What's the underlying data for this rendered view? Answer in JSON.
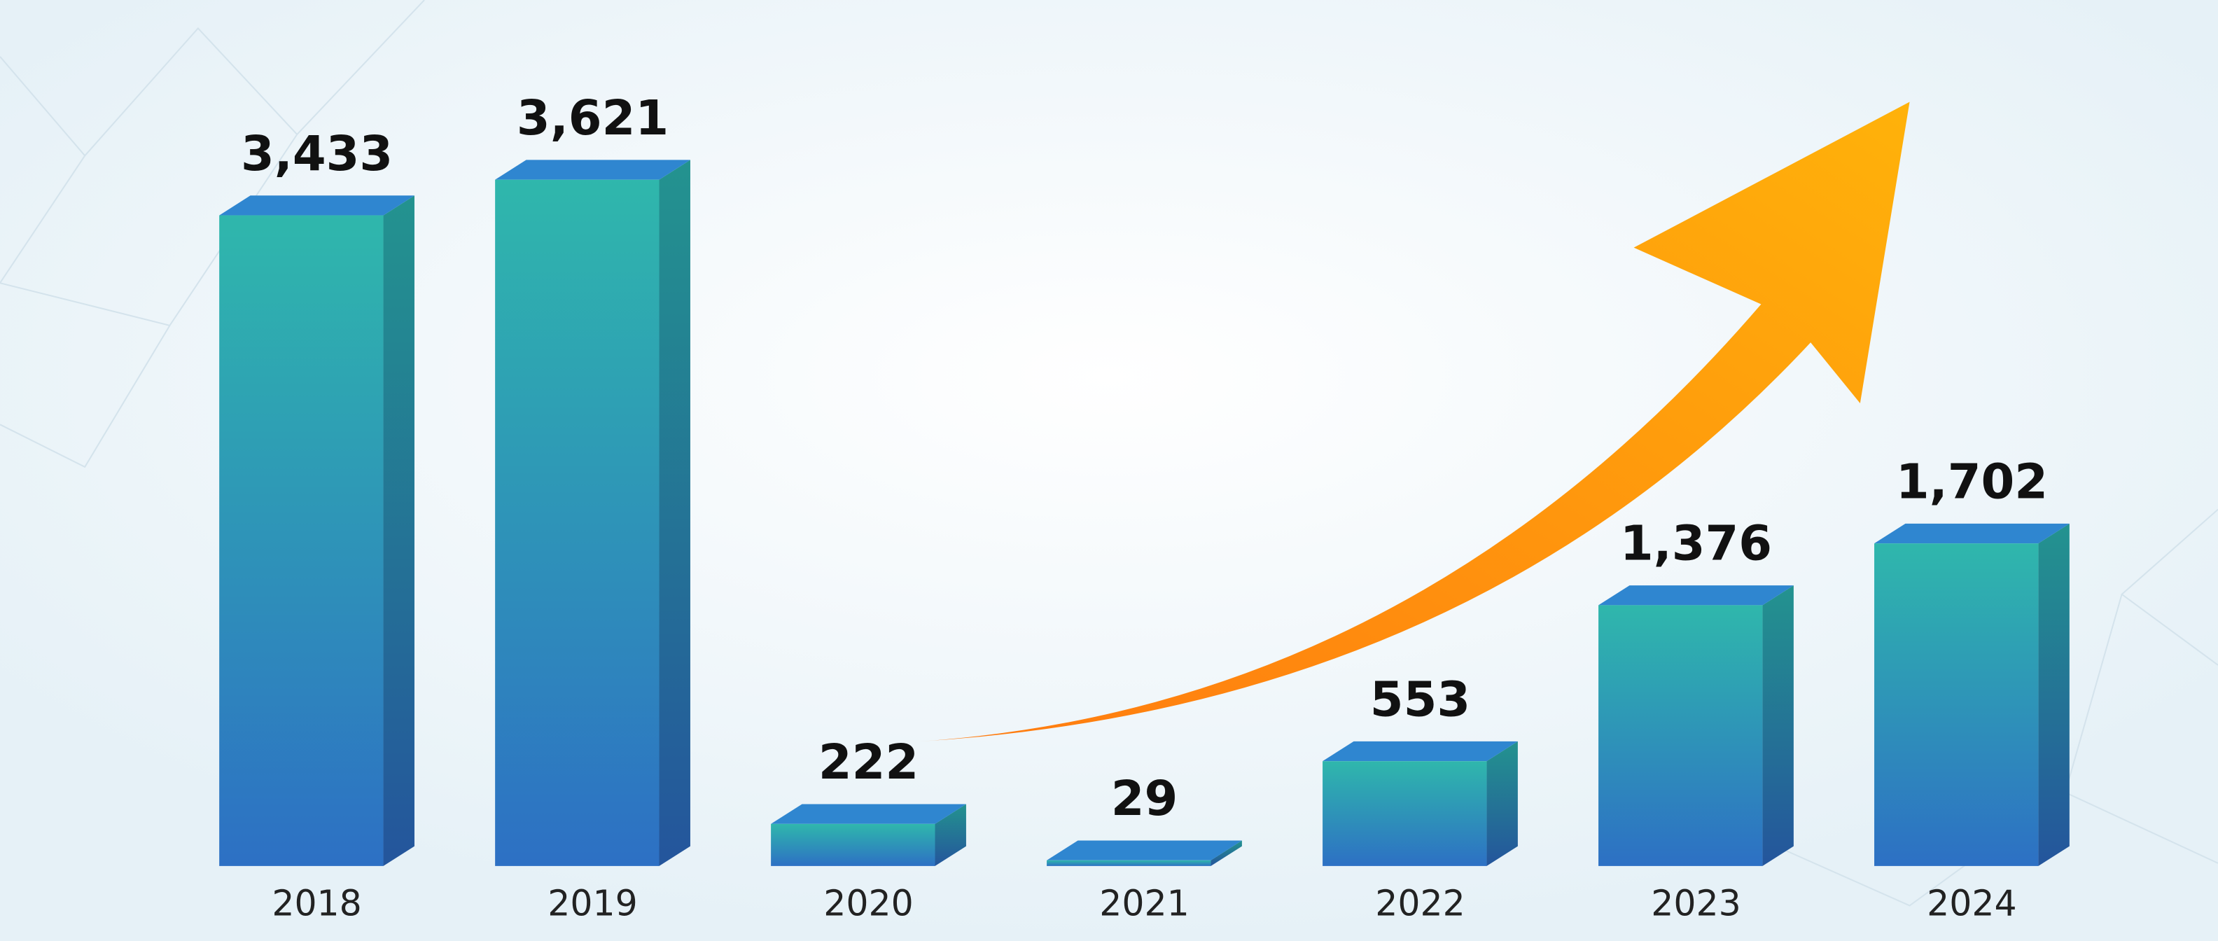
{
  "chart_data": {
    "type": "bar",
    "categories": [
      "2018",
      "2019",
      "2020",
      "2021",
      "2022",
      "2023",
      "2024"
    ],
    "values": [
      3433,
      3621,
      222,
      29,
      553,
      1376,
      1702
    ],
    "value_labels": [
      "3,433",
      "3,621",
      "222",
      "29",
      "553",
      "1,376",
      "1,702"
    ],
    "color": "#2fb7ac"
  }
}
